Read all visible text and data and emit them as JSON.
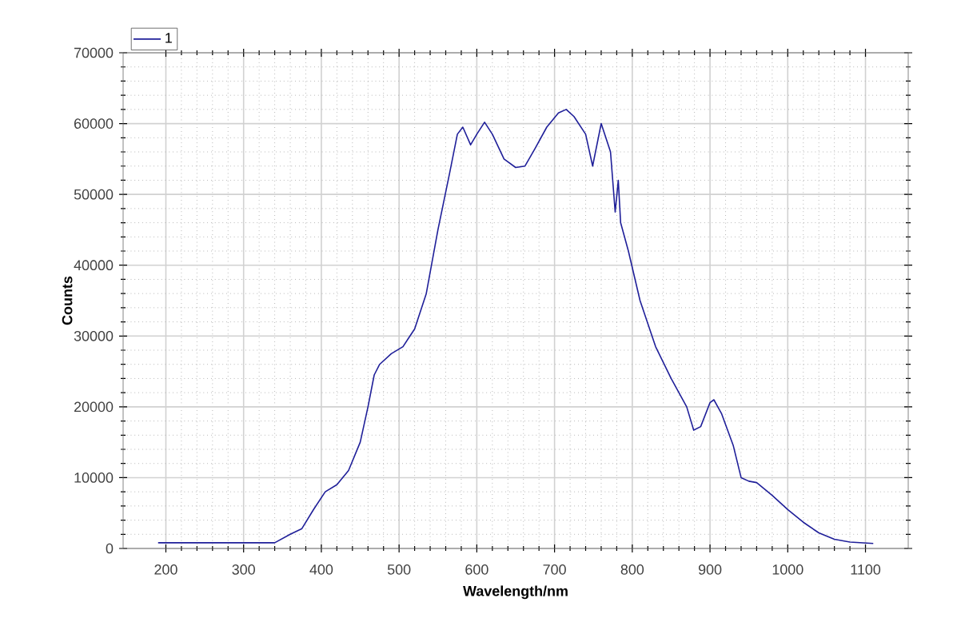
{
  "chart_data": {
    "type": "line",
    "xlabel": "Wavelength/nm",
    "ylabel": "Counts",
    "xlim": [
      145,
      1155
    ],
    "ylim": [
      0,
      70000
    ],
    "xticks": [
      200,
      300,
      400,
      500,
      600,
      700,
      800,
      900,
      1000,
      1100
    ],
    "yticks": [
      0,
      10000,
      20000,
      30000,
      40000,
      50000,
      60000,
      70000
    ],
    "grid": true,
    "legend": "top left",
    "marker": "none",
    "line_style": "solid",
    "series": [
      {
        "name": "1",
        "color": "#1f1f99",
        "x": [
          190,
          340,
          360,
          375,
          390,
          405,
          420,
          435,
          450,
          460,
          468,
          475,
          490,
          505,
          520,
          535,
          550,
          565,
          575,
          582,
          592,
          600,
          610,
          620,
          635,
          650,
          662,
          675,
          690,
          705,
          715,
          725,
          740,
          749,
          760,
          772,
          778,
          782,
          785,
          795,
          810,
          830,
          850,
          870,
          879,
          888,
          900,
          905,
          915,
          930,
          940,
          950,
          960,
          980,
          1000,
          1020,
          1040,
          1060,
          1080,
          1110
        ],
        "values": [
          800,
          800,
          2000,
          2800,
          5500,
          8000,
          9000,
          11000,
          15000,
          20000,
          24500,
          26000,
          27500,
          28500,
          31000,
          36000,
          45000,
          53000,
          58500,
          59500,
          57000,
          58500,
          60200,
          58500,
          55000,
          53800,
          54000,
          56500,
          59500,
          61500,
          62000,
          61000,
          58500,
          54000,
          60000,
          56000,
          47500,
          52000,
          46000,
          42000,
          35000,
          28500,
          24000,
          20000,
          16700,
          17200,
          20600,
          21000,
          19000,
          14500,
          10000,
          9500,
          9300,
          7500,
          5500,
          3700,
          2200,
          1300,
          900,
          700
        ]
      }
    ]
  }
}
